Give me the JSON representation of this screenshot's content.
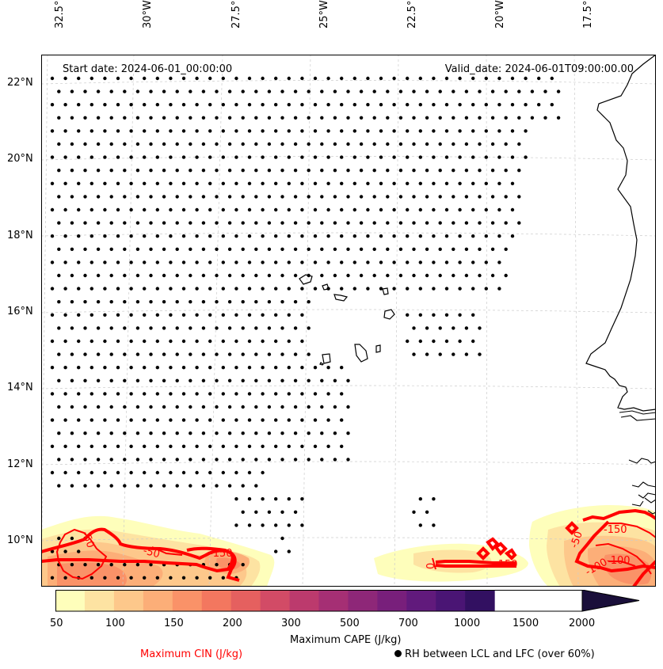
{
  "header": {
    "start_date": "Start date: 2024-06-01_00:00:00",
    "valid_date": "Valid_date: 2024-06-01T09:00:00.00"
  },
  "longitude_labels": [
    "32.5°W",
    "30°W",
    "27.5°W",
    "25°W",
    "22.5°W",
    "20°W",
    "17.5°W"
  ],
  "latitude_labels": [
    "22°N",
    "20°N",
    "18°N",
    "16°N",
    "14°N",
    "12°N",
    "10°N"
  ],
  "colorbar": {
    "title": "Maximum CAPE (J/kg)",
    "tick_labels": [
      "50",
      "100",
      "150",
      "200",
      "300",
      "500",
      "700",
      "1000",
      "1500",
      "2000"
    ],
    "colors": [
      "#fefebb",
      "#fde3a2",
      "#fdc88b",
      "#fcae78",
      "#fa9268",
      "#f3775f",
      "#e5605f",
      "#d24b66",
      "#bc3a6d",
      "#a52f74",
      "#8e2778",
      "#781f7b",
      "#611a7c",
      "#4a1574",
      "#321061",
      "#1a0f3a"
    ]
  },
  "contour_labels": [
    "-50",
    "-150",
    "-100",
    "-50",
    "0",
    "-150",
    "-50",
    "-150",
    "-100"
  ],
  "legend": {
    "cin": "Maximum CIN (J/kg)",
    "rh": "RH between LCL and LFC (over 60%)"
  },
  "colors": {
    "cin": "#ff0000",
    "dots": "#000000",
    "coast": "#000000",
    "grid": "#cccccc"
  }
}
